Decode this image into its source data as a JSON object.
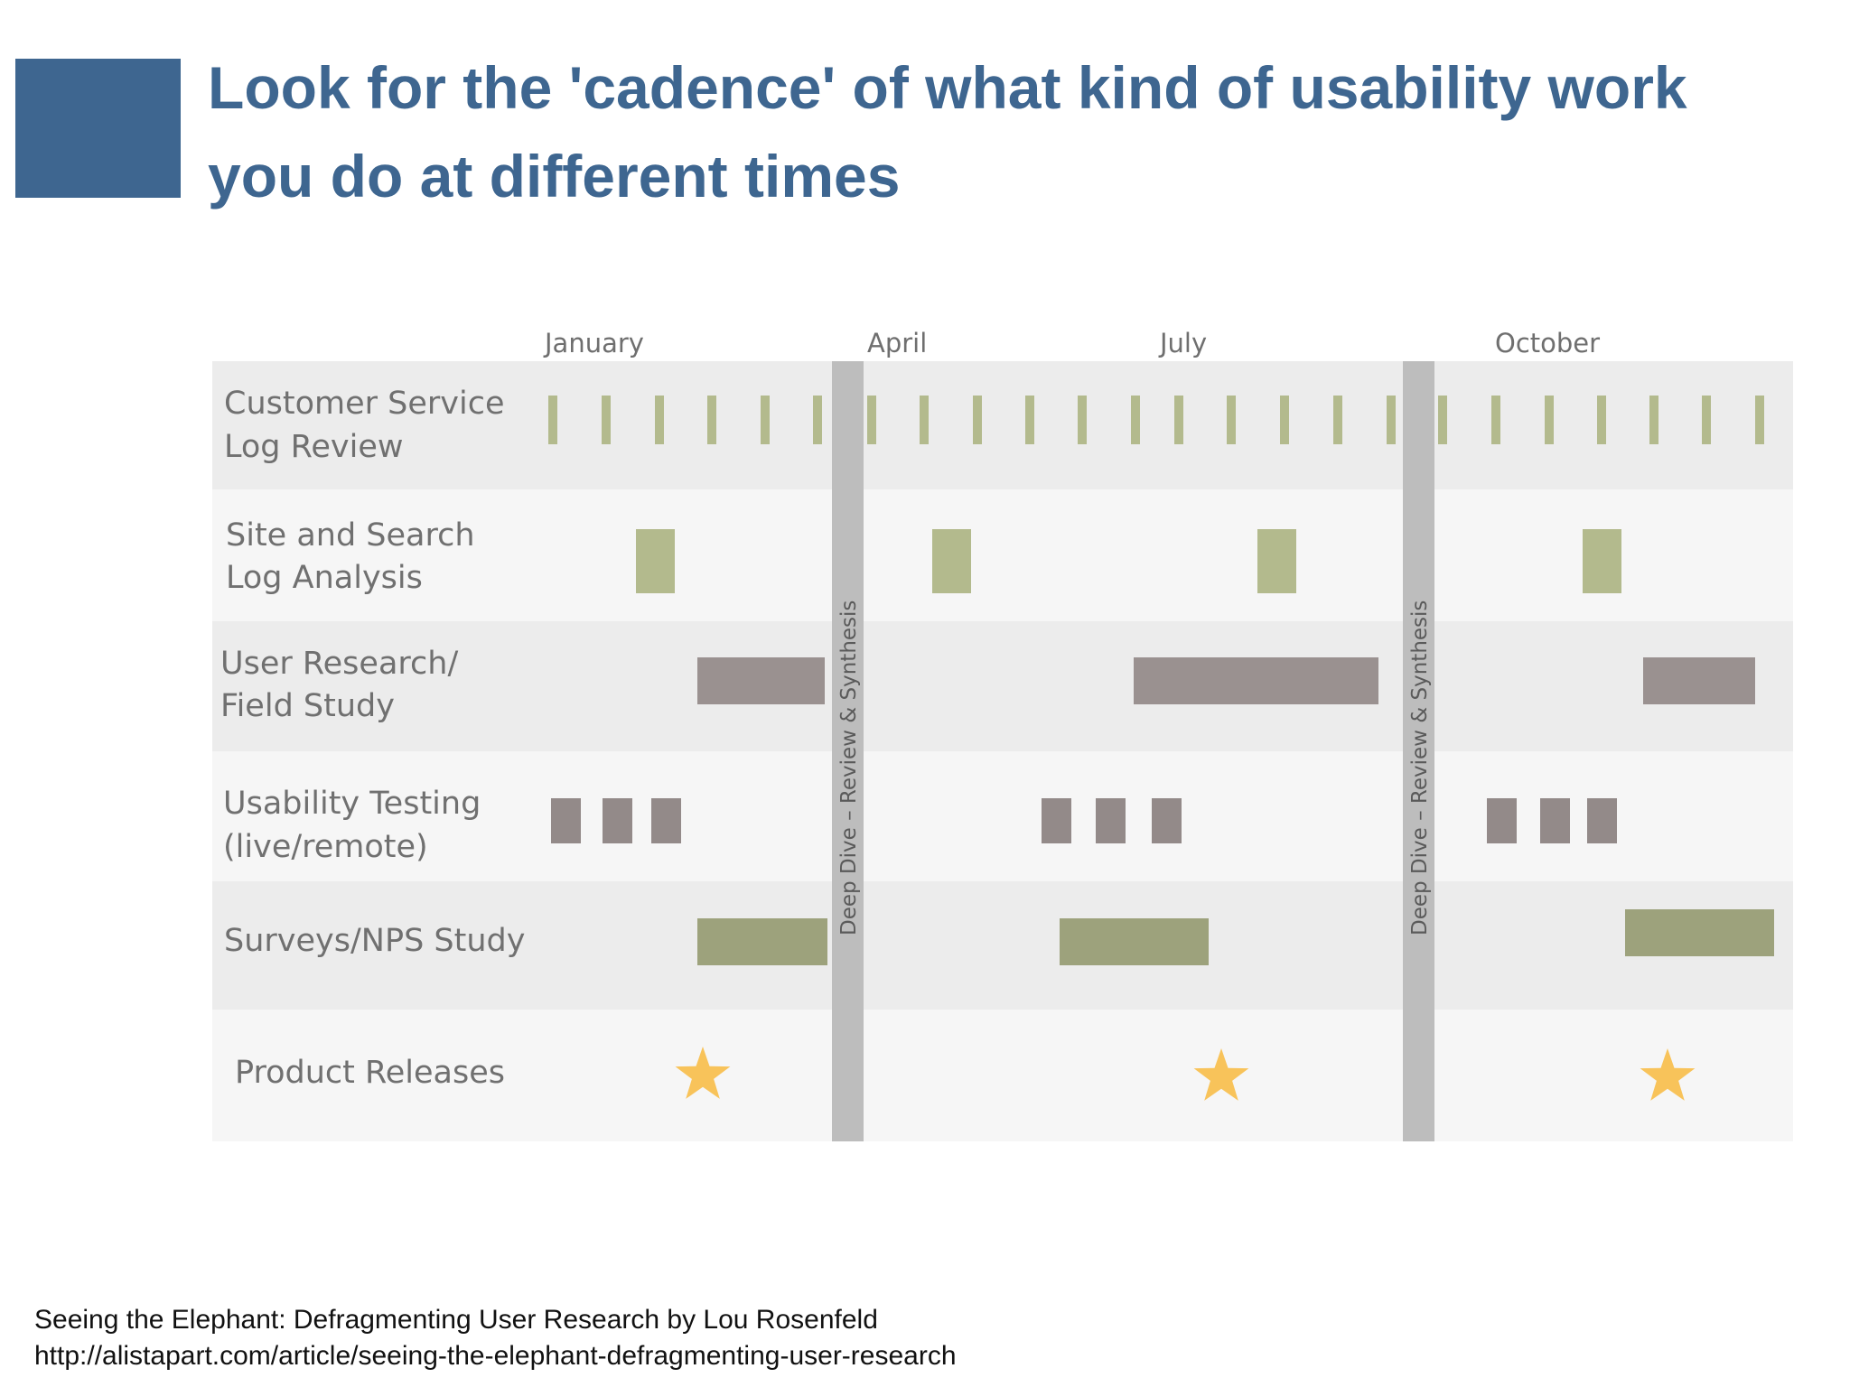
{
  "slide": {
    "title_line1": "Look for the 'cadence' of what kind of usability work",
    "title_line2": "you do at different times"
  },
  "diagram": {
    "months": [
      "January",
      "April",
      "July",
      "October"
    ],
    "divider_label": "Deep Dive – Review & Synthesis",
    "rows": [
      {
        "id": "cs-log",
        "label": [
          "Customer Service",
          "Log Review"
        ],
        "mark": "ticks",
        "color": "#b3ba8d"
      },
      {
        "id": "site-search",
        "label": [
          "Site and Search",
          "Log Analysis"
        ],
        "mark": "blocks",
        "color": "#b3ba8d"
      },
      {
        "id": "user-research",
        "label": [
          "User Research/",
          "Field Study"
        ],
        "mark": "bars",
        "color": "#9a9190"
      },
      {
        "id": "usability-testing",
        "label": [
          "Usability Testing",
          "(live/remote)"
        ],
        "mark": "squares",
        "color": "#938a89"
      },
      {
        "id": "surveys",
        "label": [
          "Surveys/NPS Study"
        ],
        "mark": "bars",
        "color": "#9da27c"
      },
      {
        "id": "releases",
        "label": [
          "Product Releases"
        ],
        "mark": "stars",
        "color": "#f8c35a"
      }
    ],
    "colors": {
      "row_dark": "#ececec",
      "row_light": "#f6f6f6",
      "divider": "#bdbdbd"
    }
  },
  "credits": {
    "line1": "Seeing the Elephant: Defragmenting User Research by Lou Rosenfeld",
    "line2": "http://alistapart.com/article/seeing-the-elephant-defragmenting-user-research"
  }
}
